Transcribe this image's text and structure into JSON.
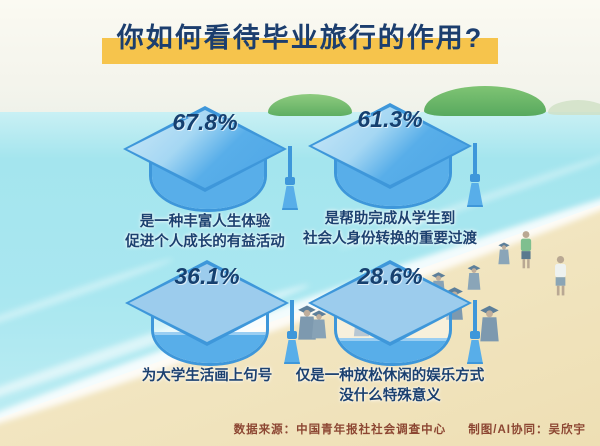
{
  "title": "你如何看待毕业旅行的作用?",
  "items": [
    {
      "value": "67.8%",
      "line1": "是一种丰富人生体验",
      "line2": "促进个人成长的有益活动"
    },
    {
      "value": "61.3%",
      "line1": "是帮助完成从学生到",
      "line2": "社会人身份转换的重要过渡"
    },
    {
      "value": "36.1%",
      "line1": "为大学生活画上句号",
      "line2": ""
    },
    {
      "value": "28.6%",
      "line1": "仅是一种放松休闲的娱乐方式",
      "line2": "没什么特殊意义"
    }
  ],
  "footer": {
    "source": "数据来源：中国青年报社社会调查中心",
    "credit": "制图/AI协同：吴欣宇"
  },
  "colors": {
    "cap_blue": "#58aee9",
    "cap_outline": "#3e97da",
    "navy_text": "#1c4170",
    "title_highlight_yellow": "#f6c44c",
    "footer_red": "#8c4632",
    "sea_turquoise": "#a4e5ee",
    "sand": "#f2e6c2"
  },
  "chart_data": {
    "type": "bar",
    "title": "你如何看待毕业旅行的作用?",
    "categories": [
      "是一种丰富人生体验 促进个人成长的有益活动",
      "是帮助完成从学生到 社会人身份转换的重要过渡",
      "为大学生活画上句号",
      "仅是一种放松休闲的娱乐方式 没什么特殊意义"
    ],
    "values": [
      67.8,
      61.3,
      36.1,
      28.6
    ],
    "unit": "%",
    "value_labels": [
      "67.8%",
      "61.3%",
      "36.1%",
      "28.6%"
    ],
    "legend": "none",
    "note": "pictorial chart – graduation-cap fill level encodes the percentage"
  }
}
